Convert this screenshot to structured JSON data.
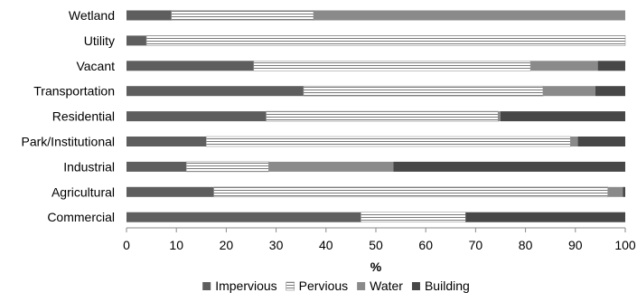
{
  "chart_data": {
    "type": "bar",
    "orientation": "horizontal",
    "stacked": true,
    "title": "",
    "xlabel": "%",
    "ylabel": "",
    "xlim": [
      0,
      100
    ],
    "xticks": [
      0,
      10,
      20,
      30,
      40,
      50,
      60,
      70,
      80,
      90,
      100
    ],
    "categories": [
      "Wetland",
      "Utility",
      "Vacant",
      "Transportation",
      "Residential",
      "Park/Institutional",
      "Industrial",
      "Agricultural",
      "Commercial"
    ],
    "series": [
      {
        "name": "Impervious",
        "color": "#5e5e5e",
        "pattern": "solid",
        "values": [
          9,
          4,
          25.5,
          35.5,
          28,
          16,
          12,
          17.5,
          47
        ]
      },
      {
        "name": "Pervious",
        "color": "#ffffff",
        "pattern": "horizontal-lines",
        "values": [
          28.5,
          96,
          55.5,
          48,
          46.5,
          73,
          16.5,
          79,
          21
        ]
      },
      {
        "name": "Water",
        "color": "#8a8a8a",
        "pattern": "solid",
        "values": [
          62.5,
          0,
          13.5,
          10.5,
          0.5,
          1.5,
          25,
          3,
          0
        ]
      },
      {
        "name": "Building",
        "color": "#474747",
        "pattern": "solid",
        "values": [
          0,
          0,
          5.5,
          6,
          25,
          9.5,
          46.5,
          0.5,
          32
        ]
      }
    ],
    "legend": {
      "placement": "bottom"
    },
    "grid": false
  }
}
